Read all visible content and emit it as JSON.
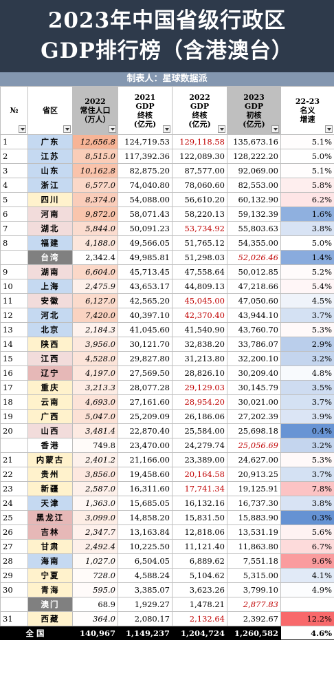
{
  "title": [
    "2023年中国省级行政区",
    "GDP排行榜（含港澳台）"
  ],
  "subtitle": "制表人：星球数据派",
  "table": {
    "headers": [
      [
        "№"
      ],
      [
        "省区"
      ],
      [
        "2022",
        "常住人口",
        "（万人）"
      ],
      [
        "2021",
        "GDP",
        "终核",
        "(亿元)"
      ],
      [
        "2022",
        "GDP",
        "终核",
        "(亿元)"
      ],
      [
        "2023",
        "GDP",
        "初核",
        "(亿元)"
      ],
      [
        "22-23",
        "名义",
        "增速"
      ]
    ],
    "rows": [
      {
        "cells": [
          "1",
          "广东",
          "12,656.8",
          "124,719.53",
          "129,118.58",
          "135,673.16",
          "5.1%"
        ],
        "color": "#c5d9f1",
        "red": [
          4
        ]
      },
      {
        "cells": [
          "2",
          "江苏",
          "8,515.0",
          "117,392.36",
          "122,089.30",
          "128,222.20",
          "5.0%"
        ],
        "color": "#c5d9f1"
      },
      {
        "cells": [
          "3",
          "山东",
          "10,162.8",
          "82,875.20",
          "87,577.00",
          "92,069.00",
          "5.1%"
        ],
        "color": "#c5d9f1"
      },
      {
        "cells": [
          "4",
          "浙江",
          "6,577.0",
          "74,040.80",
          "78,060.60",
          "82,553.00",
          "5.8%"
        ],
        "color": "#c5d9f1"
      },
      {
        "cells": [
          "5",
          "四川",
          "8,374.0",
          "54,088.00",
          "56,610.20",
          "60,132.90",
          "6.2%"
        ],
        "color": "#fff2cc"
      },
      {
        "cells": [
          "6",
          "河南",
          "9,872.0",
          "58,071.43",
          "58,220.13",
          "59,132.39",
          "1.6%"
        ],
        "color": "#f2dcdb"
      },
      {
        "cells": [
          "7",
          "湖北",
          "5,844.0",
          "50,091.23",
          "53,734.92",
          "55,803.63",
          "3.8%"
        ],
        "color": "#f2dcdb",
        "red": [
          4
        ]
      },
      {
        "cells": [
          "8",
          "福建",
          "4,188.0",
          "49,566.05",
          "51,765.12",
          "54,355.00",
          "5.0%"
        ],
        "color": "#c5d9f1"
      },
      {
        "cells": [
          null,
          "台湾",
          "2,342.4",
          "49,985.81",
          "51,298.03",
          "52,026.46",
          "1.4%"
        ],
        "color": "#808080",
        "red": [
          5
        ]
      },
      {
        "cells": [
          "9",
          "湖南",
          "6,604.0",
          "45,713.45",
          "47,558.64",
          "50,012.85",
          "5.2%"
        ],
        "color": "#f2dcdb"
      },
      {
        "cells": [
          "10",
          "上海",
          "2,475.9",
          "43,653.17",
          "44,809.13",
          "47,218.66",
          "5.4%"
        ],
        "color": "#c5d9f1"
      },
      {
        "cells": [
          "11",
          "安徽",
          "6,127.0",
          "42,565.20",
          "45,045.00",
          "47,050.60",
          "4.5%"
        ],
        "color": "#f2dcdb",
        "red": [
          4
        ]
      },
      {
        "cells": [
          "12",
          "河北",
          "7,420.0",
          "40,397.10",
          "42,370.40",
          "43,944.10",
          "3.7%"
        ],
        "color": "#c5d9f1",
        "red": [
          4
        ]
      },
      {
        "cells": [
          "13",
          "北京",
          "2,184.3",
          "41,045.60",
          "41,540.90",
          "43,760.70",
          "5.3%"
        ],
        "color": "#c5d9f1"
      },
      {
        "cells": [
          "14",
          "陕西",
          "3,956.0",
          "30,121.70",
          "32,838.20",
          "33,786.07",
          "2.9%"
        ],
        "color": "#fff2cc"
      },
      {
        "cells": [
          "15",
          "江西",
          "4,528.0",
          "29,827.80",
          "31,213.80",
          "32,200.10",
          "3.2%"
        ],
        "color": "#f2dcdb"
      },
      {
        "cells": [
          "16",
          "辽宁",
          "4,197.0",
          "27,569.50",
          "28,826.10",
          "30,209.40",
          "4.8%"
        ],
        "color": "#e6b8b7"
      },
      {
        "cells": [
          "17",
          "重庆",
          "3,213.3",
          "28,077.28",
          "29,129.03",
          "30,145.79",
          "3.5%"
        ],
        "color": "#fff2cc",
        "red": [
          4
        ]
      },
      {
        "cells": [
          "18",
          "云南",
          "4,693.0",
          "27,161.60",
          "28,954.20",
          "30,021.00",
          "3.7%"
        ],
        "color": "#fff2cc",
        "red": [
          4
        ]
      },
      {
        "cells": [
          "19",
          "广西",
          "5,047.0",
          "25,209.09",
          "26,186.06",
          "27,202.39",
          "3.9%"
        ],
        "color": "#fff2cc"
      },
      {
        "cells": [
          "20",
          "山西",
          "3,481.4",
          "22,870.40",
          "25,584.00",
          "25,698.18",
          "0.4%"
        ],
        "color": "#f2dcdb"
      },
      {
        "cells": [
          null,
          "香港",
          "749.8",
          "23,470.00",
          "24,279.74",
          "25,056.69",
          "3.2%"
        ],
        "color": "#ffffff",
        "red": [
          5
        ]
      },
      {
        "cells": [
          "21",
          "内蒙古",
          "2,401.2",
          "21,166.00",
          "23,389.00",
          "24,627.00",
          "5.3%"
        ],
        "color": "#fff2cc"
      },
      {
        "cells": [
          "22",
          "贵州",
          "3,856.0",
          "19,458.60",
          "20,164.58",
          "20,913.25",
          "3.7%"
        ],
        "color": "#fff2cc",
        "red": [
          4
        ]
      },
      {
        "cells": [
          "23",
          "新疆",
          "2,587.0",
          "16,311.60",
          "17,741.34",
          "19,125.91",
          "7.8%"
        ],
        "color": "#fff2cc",
        "red": [
          4
        ]
      },
      {
        "cells": [
          "24",
          "天津",
          "1,363.0",
          "15,685.05",
          "16,132.16",
          "16,737.30",
          "3.8%"
        ],
        "color": "#c5d9f1"
      },
      {
        "cells": [
          "25",
          "黑龙江",
          "3,099.0",
          "14,858.20",
          "15,831.50",
          "15,883.90",
          "0.3%"
        ],
        "color": "#e6b8b7"
      },
      {
        "cells": [
          "26",
          "吉林",
          "2,347.7",
          "13,163.84",
          "12,818.06",
          "13,531.19",
          "5.6%"
        ],
        "color": "#e6b8b7"
      },
      {
        "cells": [
          "27",
          "甘肃",
          "2,492.4",
          "10,225.50",
          "11,121.40",
          "11,863.80",
          "6.7%"
        ],
        "color": "#fff2cc"
      },
      {
        "cells": [
          "28",
          "海南",
          "1,027.0",
          "6,504.05",
          "6,889.62",
          "7,551.18",
          "9.6%"
        ],
        "color": "#c5d9f1"
      },
      {
        "cells": [
          "29",
          "宁夏",
          "728.0",
          "4,588.24",
          "5,104.62",
          "5,315.00",
          "4.1%"
        ],
        "color": "#fff2cc"
      },
      {
        "cells": [
          "30",
          "青海",
          "595.0",
          "3,385.07",
          "3,623.26",
          "3,799.10",
          "4.9%"
        ],
        "color": "#fff2cc"
      },
      {
        "cells": [
          null,
          "澳门",
          "68.9",
          "1,929.27",
          "1,478.21",
          "2,877.83",
          null
        ],
        "color": "#808080",
        "red": [
          5
        ]
      },
      {
        "cells": [
          "31",
          "西藏",
          "364.0",
          "2,080.17",
          "2,132.64",
          "2,392.67",
          "12.2%"
        ],
        "color": "#fff2cc",
        "red": [
          4
        ]
      }
    ],
    "total": [
      "全国",
      "140,967",
      "1,149,237",
      "1,204,724",
      "1,260,582",
      "4.6%"
    ]
  }
}
